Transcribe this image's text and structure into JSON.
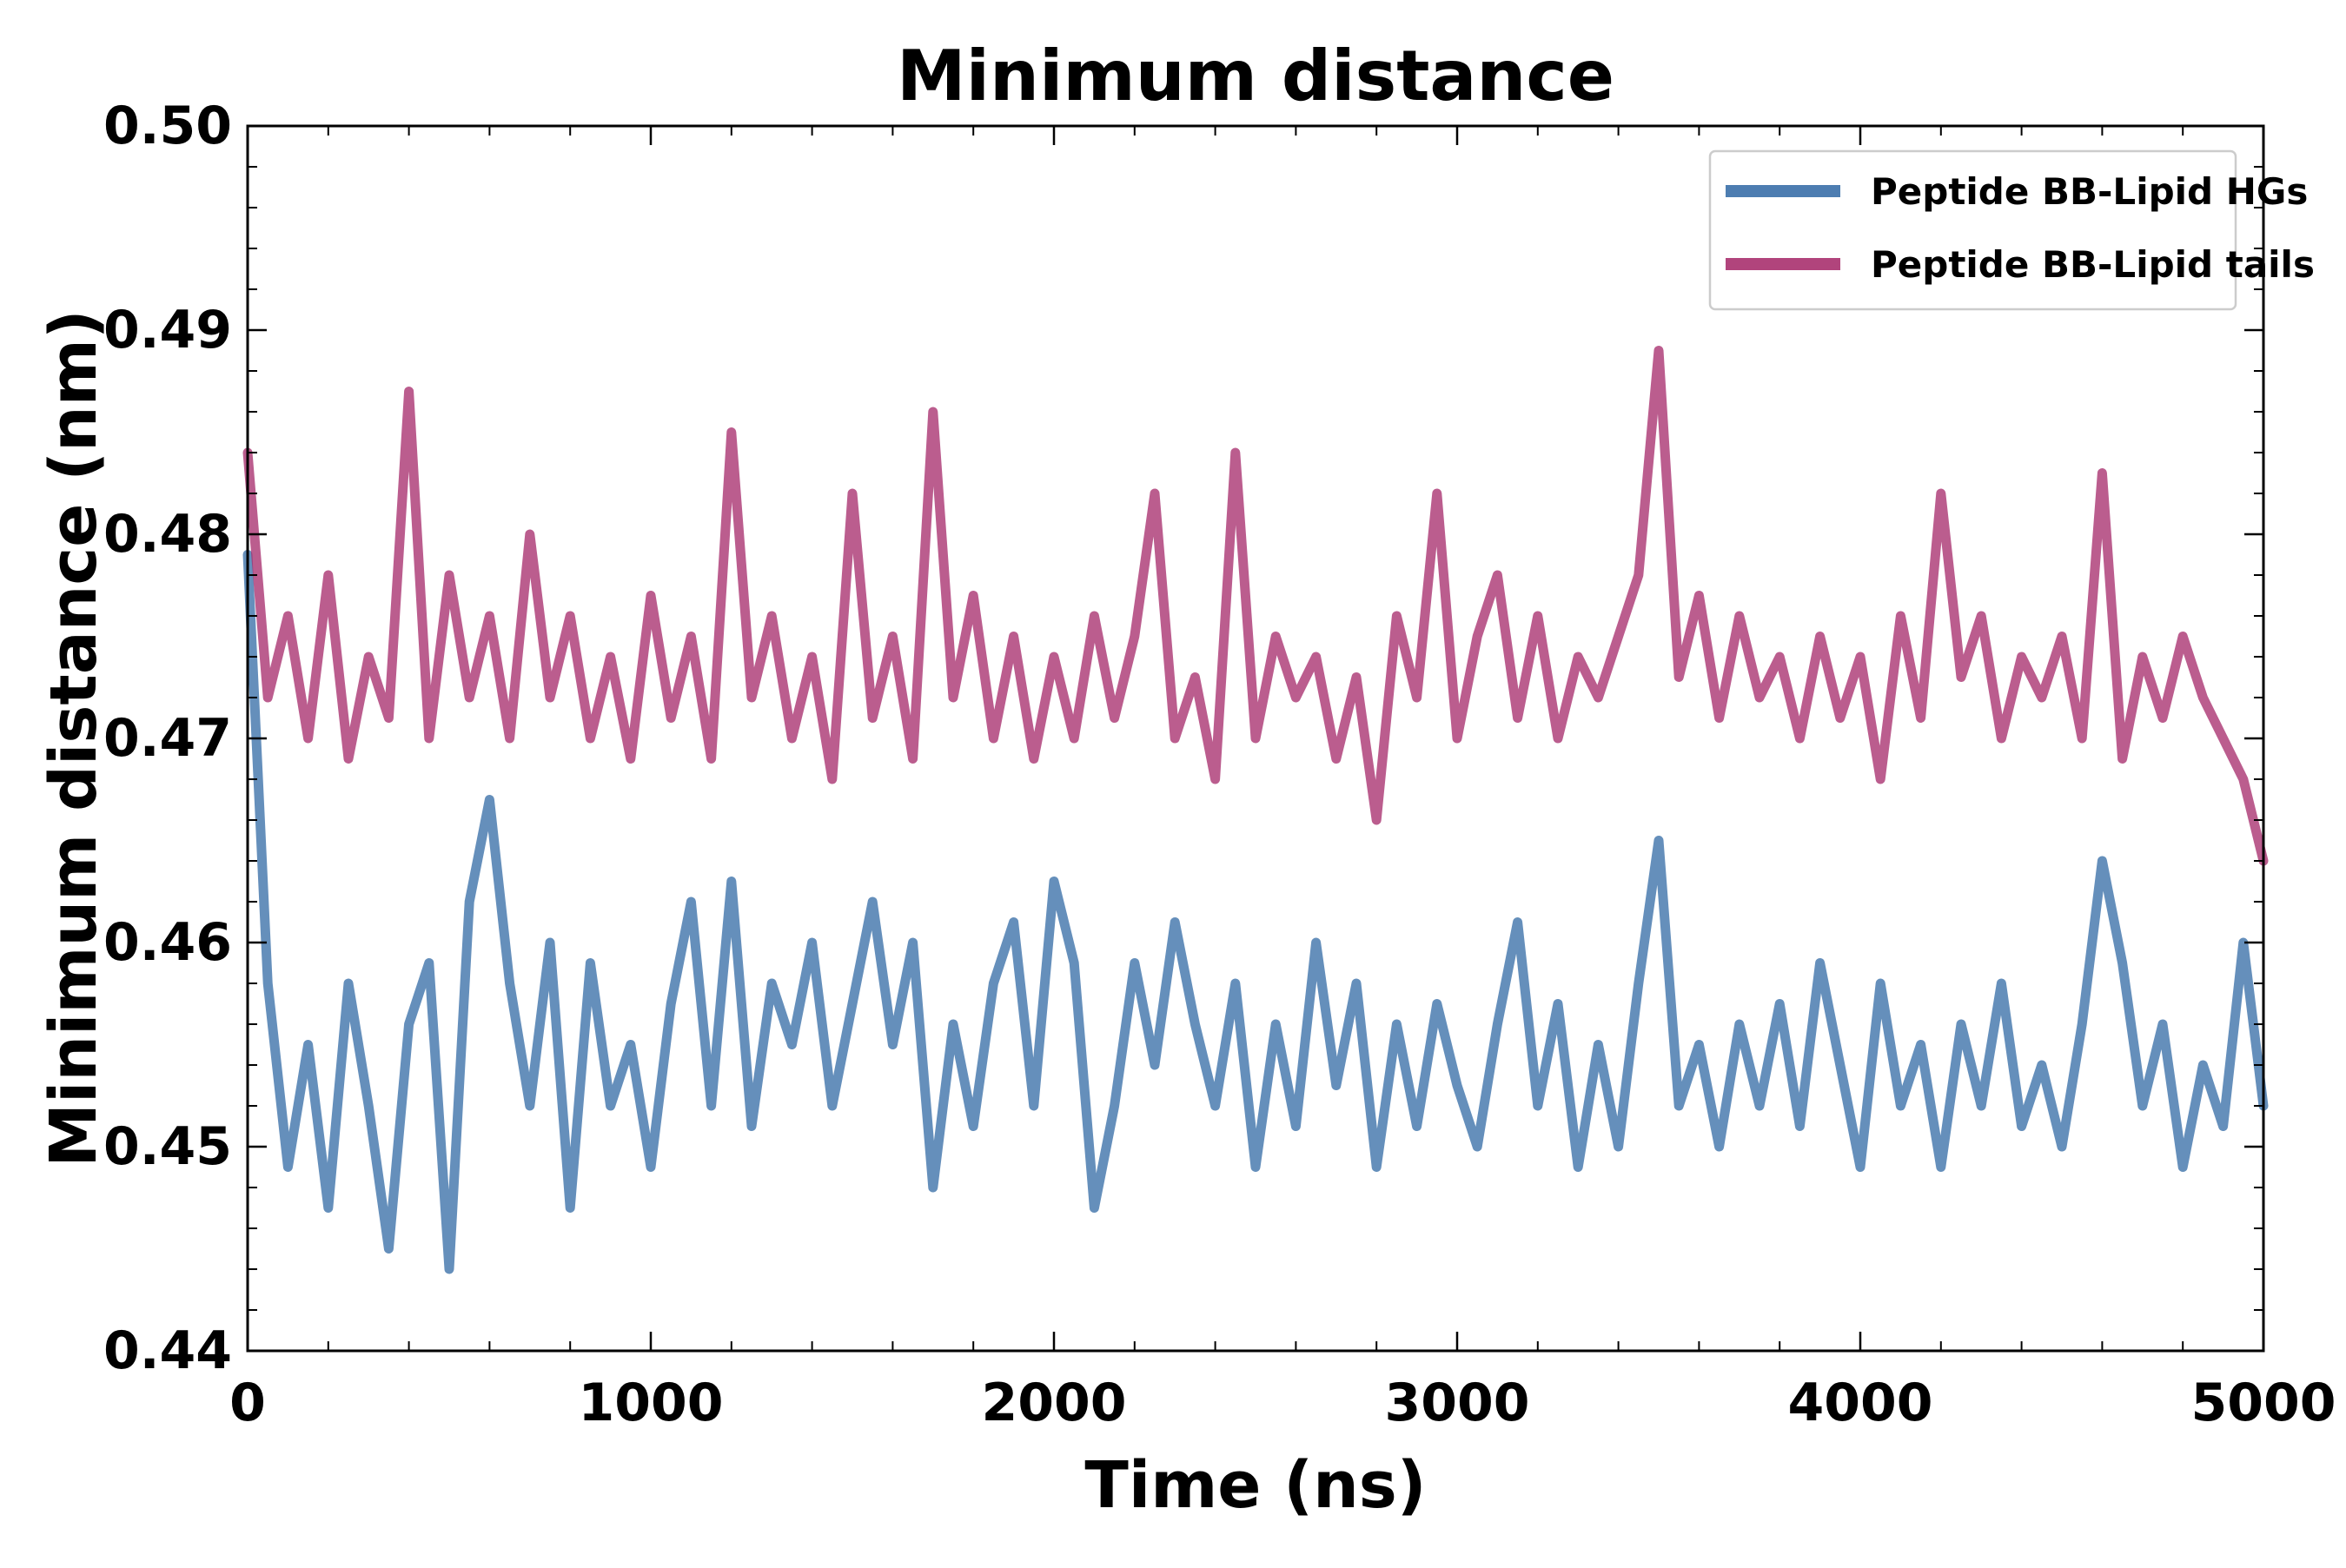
{
  "chart_data": {
    "type": "line",
    "title": "Minimum distance",
    "xlabel": "Time (ns)",
    "ylabel": "Minimum distance (nm)",
    "xlim": [
      0,
      5000
    ],
    "ylim": [
      0.44,
      0.5
    ],
    "xticks": [
      0,
      1000,
      2000,
      3000,
      4000,
      5000
    ],
    "xtick_labels": [
      "0",
      "1000",
      "2000",
      "3000",
      "4000",
      "5000"
    ],
    "yticks": [
      0.44,
      0.45,
      0.46,
      0.47,
      0.48,
      0.49,
      0.5
    ],
    "ytick_labels": [
      "0.44",
      "0.45",
      "0.46",
      "0.47",
      "0.48",
      "0.49",
      "0.50"
    ],
    "grid": false,
    "legend_position": "top-right",
    "series": [
      {
        "name": "Peptide BB-Lipid HGs",
        "color": "#3a6fa8",
        "x": [
          0,
          50,
          100,
          150,
          200,
          250,
          300,
          350,
          400,
          450,
          500,
          550,
          600,
          650,
          700,
          750,
          800,
          850,
          900,
          950,
          1000,
          1050,
          1100,
          1150,
          1200,
          1250,
          1300,
          1350,
          1400,
          1450,
          1500,
          1550,
          1600,
          1650,
          1700,
          1750,
          1800,
          1850,
          1900,
          1950,
          2000,
          2050,
          2100,
          2150,
          2200,
          2250,
          2300,
          2350,
          2400,
          2450,
          2500,
          2550,
          2600,
          2650,
          2700,
          2750,
          2800,
          2850,
          2900,
          2950,
          3000,
          3050,
          3100,
          3150,
          3200,
          3250,
          3300,
          3350,
          3400,
          3450,
          3500,
          3550,
          3600,
          3650,
          3700,
          3750,
          3800,
          3850,
          3900,
          3950,
          4000,
          4050,
          4100,
          4150,
          4200,
          4250,
          4300,
          4350,
          4400,
          4450,
          4500,
          4550,
          4600,
          4650,
          4700,
          4750,
          4800,
          4850,
          4900,
          4950,
          5000
        ],
        "values": [
          0.479,
          0.458,
          0.449,
          0.455,
          0.447,
          0.458,
          0.452,
          0.445,
          0.456,
          0.459,
          0.444,
          0.462,
          0.467,
          0.458,
          0.452,
          0.46,
          0.447,
          0.459,
          0.452,
          0.455,
          0.449,
          0.457,
          0.462,
          0.452,
          0.463,
          0.451,
          0.458,
          0.455,
          0.46,
          0.452,
          0.457,
          0.462,
          0.455,
          0.46,
          0.448,
          0.456,
          0.451,
          0.458,
          0.461,
          0.452,
          0.463,
          0.459,
          0.447,
          0.452,
          0.459,
          0.454,
          0.461,
          0.456,
          0.452,
          0.458,
          0.449,
          0.456,
          0.451,
          0.46,
          0.453,
          0.458,
          0.449,
          0.456,
          0.451,
          0.457,
          0.453,
          0.45,
          0.456,
          0.461,
          0.452,
          0.457,
          0.449,
          0.455,
          0.45,
          0.458,
          0.465,
          0.452,
          0.455,
          0.45,
          0.456,
          0.452,
          0.457,
          0.451,
          0.459,
          0.454,
          0.449,
          0.458,
          0.452,
          0.455,
          0.449,
          0.456,
          0.452,
          0.458,
          0.451,
          0.454,
          0.45,
          0.456,
          0.464,
          0.459,
          0.452,
          0.456,
          0.449,
          0.454,
          0.451,
          0.46,
          0.452
        ]
      },
      {
        "name": "Peptide BB-Lipid tails",
        "color": "#a8306e",
        "x": [
          0,
          50,
          100,
          150,
          200,
          250,
          300,
          350,
          400,
          450,
          500,
          550,
          600,
          650,
          700,
          750,
          800,
          850,
          900,
          950,
          1000,
          1050,
          1100,
          1150,
          1200,
          1250,
          1300,
          1350,
          1400,
          1450,
          1500,
          1550,
          1600,
          1650,
          1700,
          1750,
          1800,
          1850,
          1900,
          1950,
          2000,
          2050,
          2100,
          2150,
          2200,
          2250,
          2300,
          2350,
          2400,
          2450,
          2500,
          2550,
          2600,
          2650,
          2700,
          2750,
          2800,
          2850,
          2900,
          2950,
          3000,
          3050,
          3100,
          3150,
          3200,
          3250,
          3300,
          3350,
          3400,
          3450,
          3500,
          3550,
          3600,
          3650,
          3700,
          3750,
          3800,
          3850,
          3900,
          3950,
          4000,
          4050,
          4100,
          4150,
          4200,
          4250,
          4300,
          4350,
          4400,
          4450,
          4500,
          4550,
          4600,
          4650,
          4700,
          4750,
          4800,
          4850,
          4900,
          4950,
          5000
        ],
        "values": [
          0.484,
          0.472,
          0.476,
          0.47,
          0.478,
          0.469,
          0.474,
          0.471,
          0.487,
          0.47,
          0.478,
          0.472,
          0.476,
          0.47,
          0.48,
          0.472,
          0.476,
          0.47,
          0.474,
          0.469,
          0.477,
          0.471,
          0.475,
          0.469,
          0.485,
          0.472,
          0.476,
          0.47,
          0.474,
          0.468,
          0.482,
          0.471,
          0.475,
          0.469,
          0.486,
          0.472,
          0.477,
          0.47,
          0.475,
          0.469,
          0.474,
          0.47,
          0.476,
          0.471,
          0.475,
          0.482,
          0.47,
          0.473,
          0.468,
          0.484,
          0.47,
          0.475,
          0.472,
          0.474,
          0.469,
          0.473,
          0.466,
          0.476,
          0.472,
          0.482,
          0.47,
          0.475,
          0.478,
          0.471,
          0.476,
          0.47,
          0.474,
          0.472,
          0.475,
          0.478,
          0.489,
          0.473,
          0.477,
          0.471,
          0.476,
          0.472,
          0.474,
          0.47,
          0.475,
          0.471,
          0.474,
          0.468,
          0.476,
          0.471,
          0.482,
          0.473,
          0.476,
          0.47,
          0.474,
          0.472,
          0.475,
          0.47,
          0.483,
          0.469,
          0.474,
          0.471,
          0.475,
          0.472,
          0.47,
          0.468,
          0.464
        ]
      }
    ]
  }
}
